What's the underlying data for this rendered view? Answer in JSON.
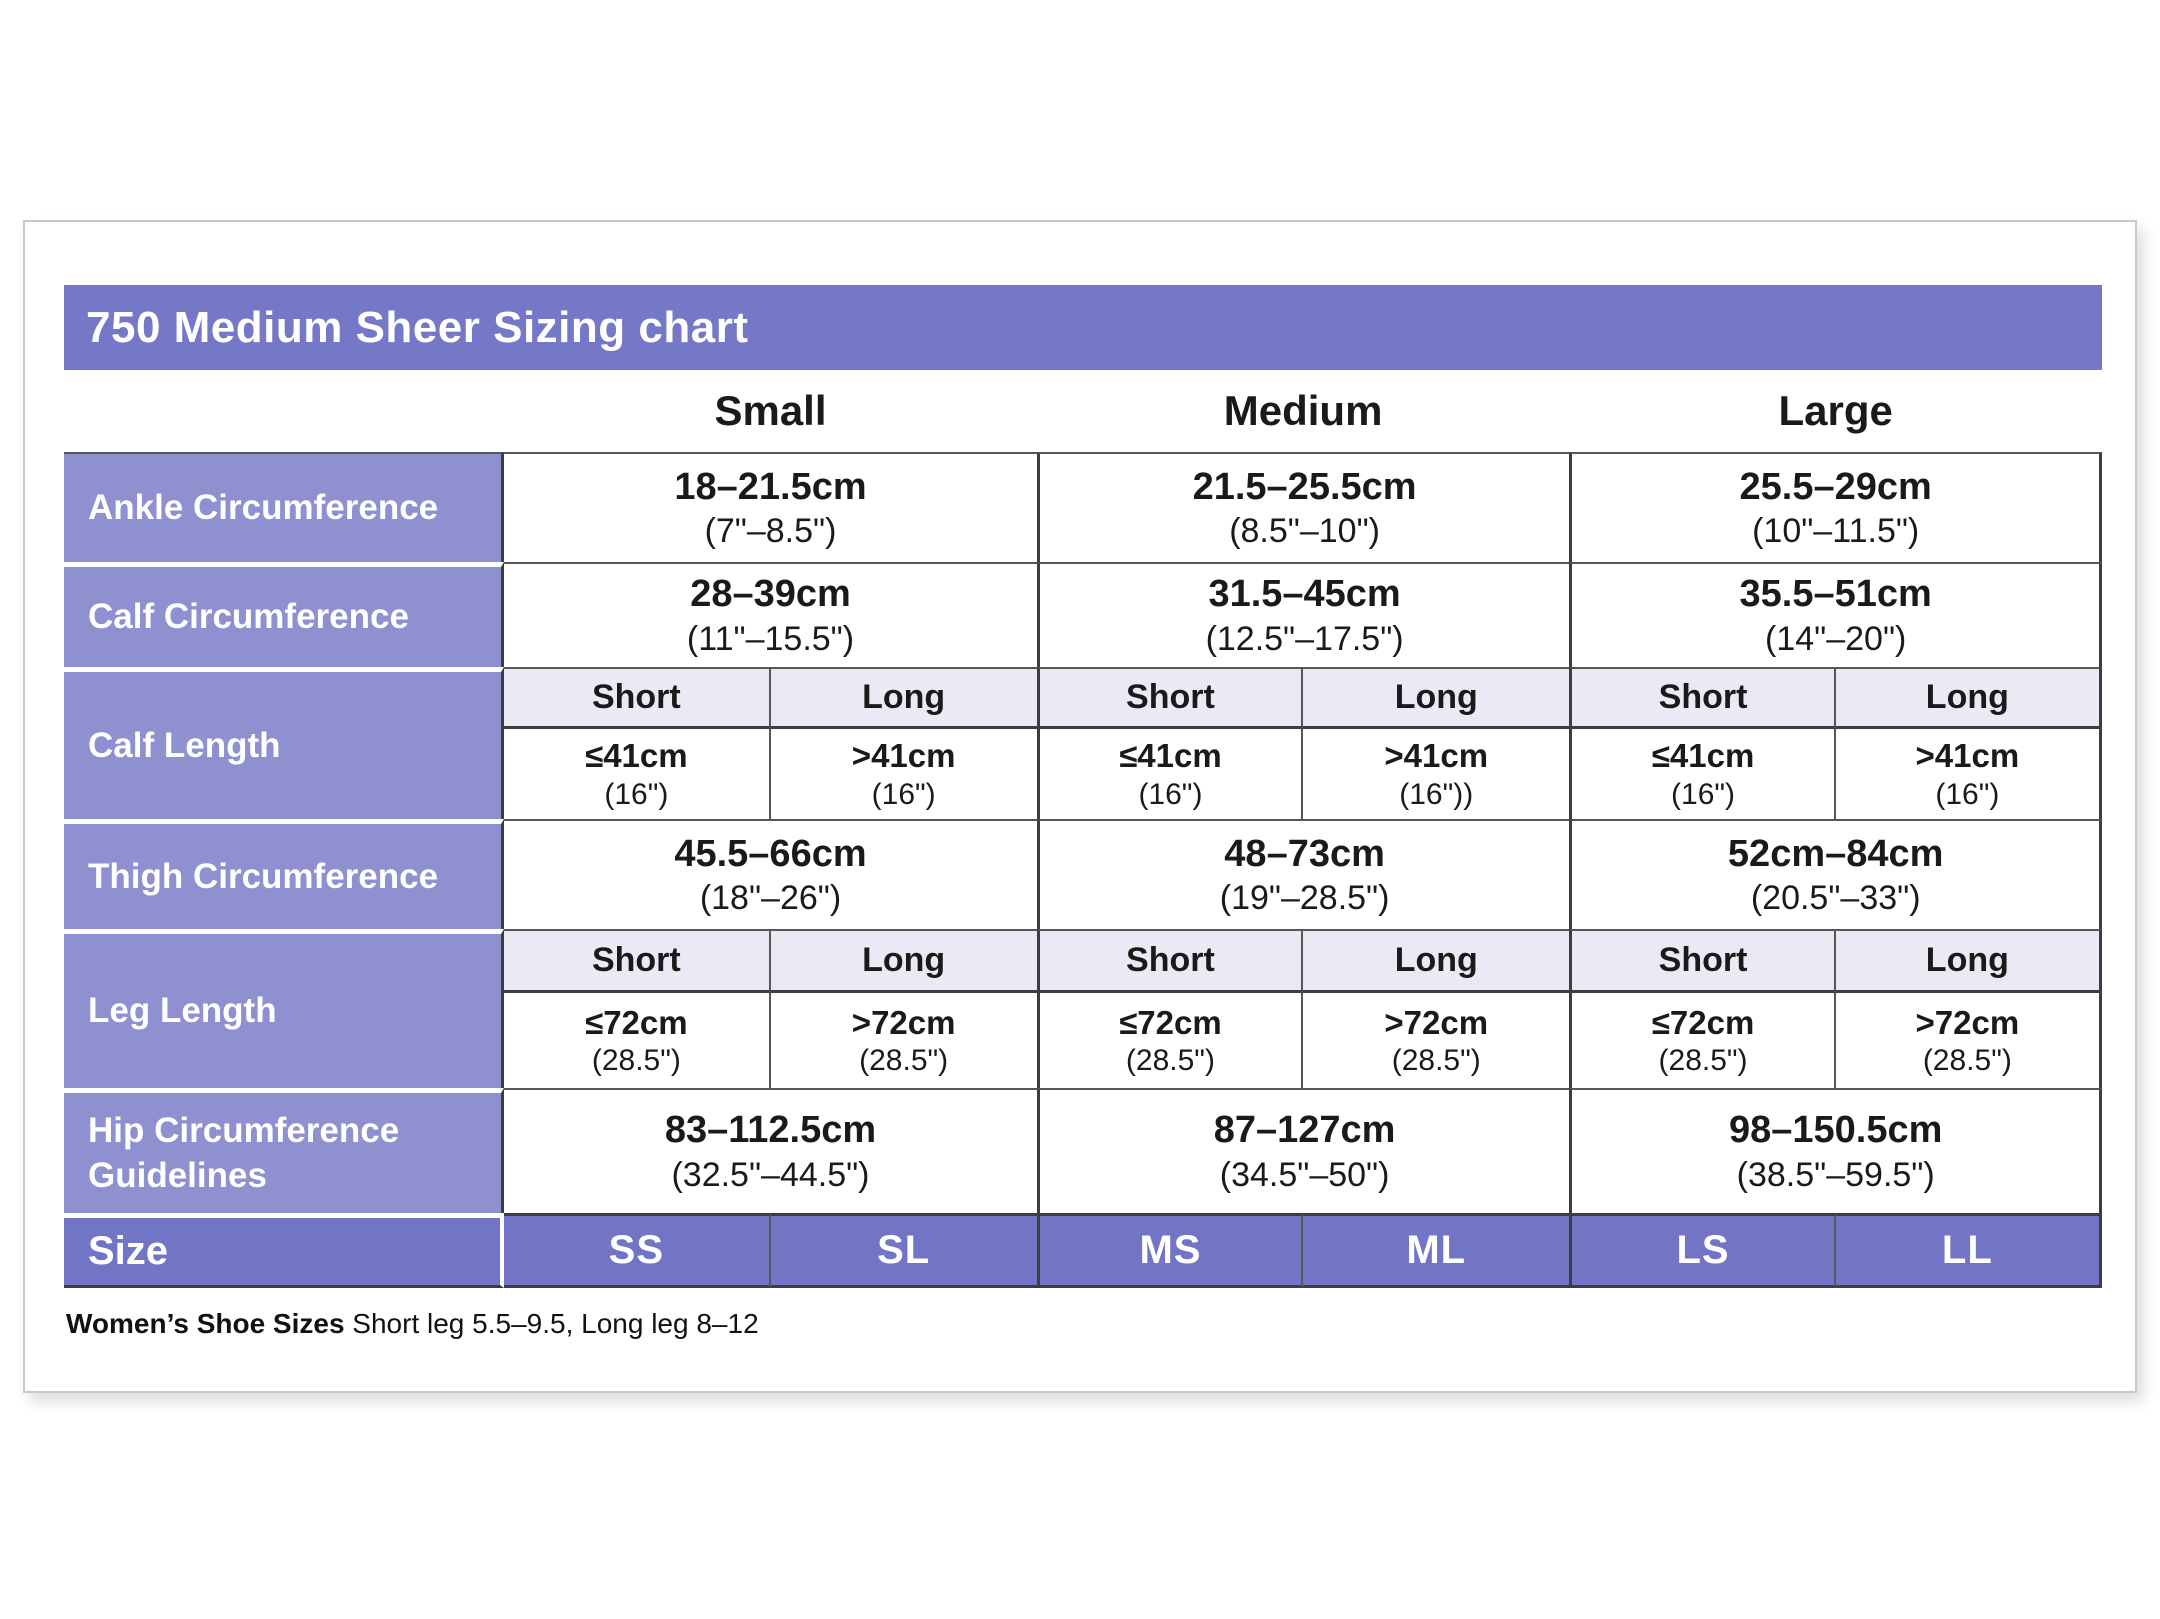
{
  "title": "750 Medium Sheer Sizing chart",
  "group_headers": [
    "Small",
    "Medium",
    "Large"
  ],
  "rows": {
    "ankle": {
      "label": "Ankle Circumference",
      "values": [
        {
          "cm": "18–21.5cm",
          "inches": "(7\"–8.5\")"
        },
        {
          "cm": "21.5–25.5cm",
          "inches": "(8.5\"–10\")"
        },
        {
          "cm": "25.5–29cm",
          "inches": "(10\"–11.5\")"
        }
      ]
    },
    "calf_circumference": {
      "label": "Calf Circumference",
      "values": [
        {
          "cm": "28–39cm",
          "inches": "(11\"–15.5\")"
        },
        {
          "cm": "31.5–45cm",
          "inches": "(12.5\"–17.5\")"
        },
        {
          "cm": "35.5–51cm",
          "inches": "(14\"–20\")"
        }
      ]
    },
    "calf_length": {
      "label": "Calf Length",
      "subheaders": [
        "Short",
        "Long",
        "Short",
        "Long",
        "Short",
        "Long"
      ],
      "values": [
        {
          "cm": "≤41cm",
          "inches": "(16\")"
        },
        {
          "cm": ">41cm",
          "inches": "(16\")"
        },
        {
          "cm": "≤41cm",
          "inches": "(16\")"
        },
        {
          "cm": ">41cm",
          "inches": "(16\"))"
        },
        {
          "cm": "≤41cm",
          "inches": "(16\")"
        },
        {
          "cm": ">41cm",
          "inches": "(16\")"
        }
      ]
    },
    "thigh": {
      "label": "Thigh Circumference",
      "values": [
        {
          "cm": "45.5–66cm",
          "inches": "(18\"–26\")"
        },
        {
          "cm": "48–73cm",
          "inches": "(19\"–28.5\")"
        },
        {
          "cm": "52cm–84cm",
          "inches": "(20.5\"–33\")"
        }
      ]
    },
    "leg_length": {
      "label": "Leg Length",
      "subheaders": [
        "Short",
        "Long",
        "Short",
        "Long",
        "Short",
        "Long"
      ],
      "values": [
        {
          "cm": "≤72cm",
          "inches": "(28.5\")"
        },
        {
          "cm": ">72cm",
          "inches": "(28.5\")"
        },
        {
          "cm": "≤72cm",
          "inches": "(28.5\")"
        },
        {
          "cm": ">72cm",
          "inches": "(28.5\")"
        },
        {
          "cm": "≤72cm",
          "inches": "(28.5\")"
        },
        {
          "cm": ">72cm",
          "inches": "(28.5\")"
        }
      ]
    },
    "hip": {
      "label": "Hip Circumference Guidelines",
      "values": [
        {
          "cm": "83–112.5cm",
          "inches": "(32.5\"–44.5\")"
        },
        {
          "cm": "87–127cm",
          "inches": "(34.5\"–50\")"
        },
        {
          "cm": "98–150.5cm",
          "inches": "(38.5\"–59.5\")"
        }
      ]
    },
    "size": {
      "label": "Size",
      "values": [
        "SS",
        "SL",
        "MS",
        "ML",
        "LS",
        "LL"
      ]
    }
  },
  "footer": {
    "label": "Women’s Shoe Sizes",
    "text": " Short leg 5.5–9.5, Long leg 8–12"
  },
  "colors": {
    "title_bar": "#7577c7",
    "row_label": "#8e90d0",
    "size_row": "#7275c5",
    "subheader_bg": "#eaeaf5",
    "border": "#55565a",
    "border_dark": "#3c3d40"
  }
}
